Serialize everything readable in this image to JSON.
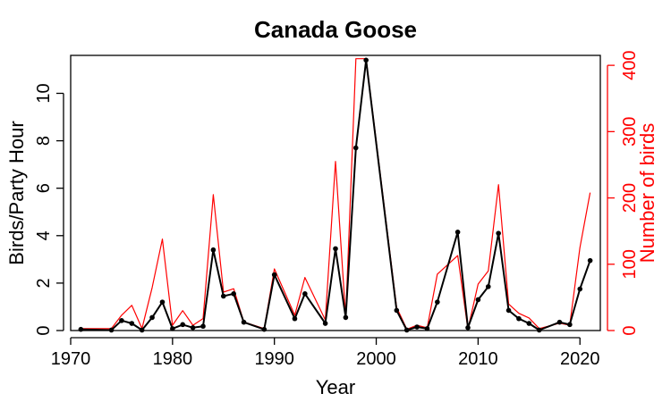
{
  "chart_data": {
    "type": "line",
    "title": "Canada Goose",
    "xlabel": "Year",
    "ylabel_left": "Birds/Party Hour",
    "ylabel_right": "Number of birds",
    "xlim": [
      1970,
      2022
    ],
    "ylim_left": [
      0,
      11.6
    ],
    "ylim_right": [
      0,
      415
    ],
    "x_ticks": [
      1970,
      1980,
      1990,
      2000,
      2010,
      2020
    ],
    "y_ticks_left": [
      0,
      2,
      4,
      6,
      8,
      10
    ],
    "y_ticks_right": [
      0,
      100,
      200,
      300,
      400
    ],
    "colors": {
      "left_series": "#000000",
      "right_series": "#ff0000",
      "axis_right": "#ff0000"
    },
    "grid": false,
    "series": [
      {
        "axis": "left",
        "markers": true,
        "x": [
          1971,
          1974,
          1975,
          1976,
          1977,
          1978,
          1979,
          1980,
          1981,
          1982,
          1983,
          1984,
          1985,
          1986,
          1987,
          1989,
          1990,
          1992,
          1993,
          1995,
          1996,
          1997,
          1998,
          1999,
          2002,
          2003,
          2004,
          2005,
          2006,
          2008,
          2009,
          2010,
          2011,
          2012,
          2013,
          2014,
          2015,
          2016,
          2018,
          2019,
          2020,
          2021
        ],
        "values": [
          0.05,
          0.02,
          0.42,
          0.3,
          0.02,
          0.55,
          1.2,
          0.08,
          0.25,
          0.12,
          0.18,
          3.4,
          1.45,
          1.55,
          0.35,
          0.05,
          2.35,
          0.5,
          1.55,
          0.3,
          3.45,
          0.55,
          7.7,
          11.4,
          0.85,
          0.02,
          0.15,
          0.08,
          1.2,
          4.15,
          0.12,
          1.3,
          1.85,
          4.1,
          0.85,
          0.5,
          0.3,
          0.02,
          0.35,
          0.25,
          1.75,
          2.95
        ]
      },
      {
        "axis": "right",
        "markers": false,
        "x": [
          1971,
          1974,
          1975,
          1976,
          1977,
          1978,
          1979,
          1980,
          1981,
          1982,
          1983,
          1984,
          1985,
          1986,
          1987,
          1989,
          1990,
          1992,
          1993,
          1995,
          1996,
          1997,
          1998,
          1999,
          2002,
          2003,
          2004,
          2005,
          2006,
          2008,
          2009,
          2010,
          2011,
          2012,
          2013,
          2014,
          2015,
          2016,
          2018,
          2019,
          2020,
          2021
        ],
        "values": [
          3,
          3,
          23,
          38,
          3,
          65,
          138,
          8,
          30,
          8,
          18,
          205,
          58,
          63,
          13,
          3,
          93,
          23,
          80,
          16,
          255,
          20,
          410,
          410,
          35,
          2,
          8,
          4,
          85,
          113,
          2,
          70,
          90,
          220,
          40,
          26,
          19,
          3,
          11,
          8,
          125,
          208
        ]
      }
    ]
  }
}
